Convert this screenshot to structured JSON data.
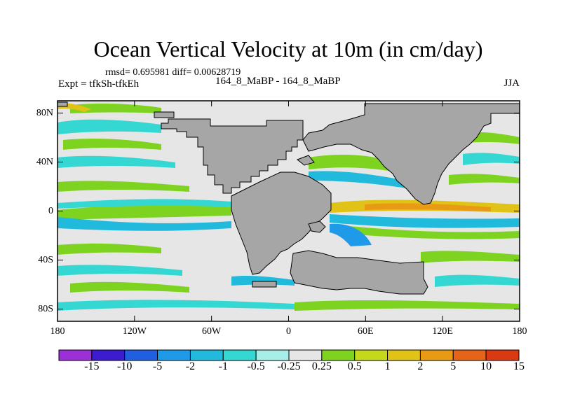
{
  "title": "Ocean Vertical Velocity at 10m (in cm/day)",
  "stats_line": "rmsd= 0.695981 diff= 0.00628719",
  "experiment": "Expt = tfkSh-tfkEh",
  "runs": "164_8_MaBP - 164_8_MaBP",
  "season": "JJA",
  "axes": {
    "lat_ticks": [
      {
        "label": "80N",
        "lat": 80
      },
      {
        "label": "40N",
        "lat": 40
      },
      {
        "label": "0",
        "lat": 0
      },
      {
        "label": "40S",
        "lat": -40
      },
      {
        "label": "80S",
        "lat": -80
      }
    ],
    "lon_ticks": [
      {
        "label": "180",
        "lon": -180
      },
      {
        "label": "120W",
        "lon": -120
      },
      {
        "label": "60W",
        "lon": -60
      },
      {
        "label": "0",
        "lon": 0
      },
      {
        "label": "60E",
        "lon": 60
      },
      {
        "label": "120E",
        "lon": 120
      },
      {
        "label": "180",
        "lon": 180
      }
    ],
    "lon_range": [
      -180,
      180
    ],
    "lat_range": [
      -90,
      90
    ]
  },
  "colorbar": {
    "labels": [
      "-15",
      "-10",
      "-5",
      "-2",
      "-1",
      "-0.5",
      "-0.25",
      "0.25",
      "0.5",
      "1",
      "2",
      "5",
      "10",
      "15"
    ],
    "colors": [
      "#9b30d8",
      "#3d1bd0",
      "#1f5fe0",
      "#1f9ae8",
      "#21b9dc",
      "#35d7d2",
      "#a8eee8",
      "#e6e6e6",
      "#7ed321",
      "#c6d81b",
      "#e1c317",
      "#e89a14",
      "#e5641a",
      "#d93a14"
    ]
  },
  "map_colors": {
    "land": "#a6a6a6",
    "ocean_background": "#e6e6e6"
  }
}
